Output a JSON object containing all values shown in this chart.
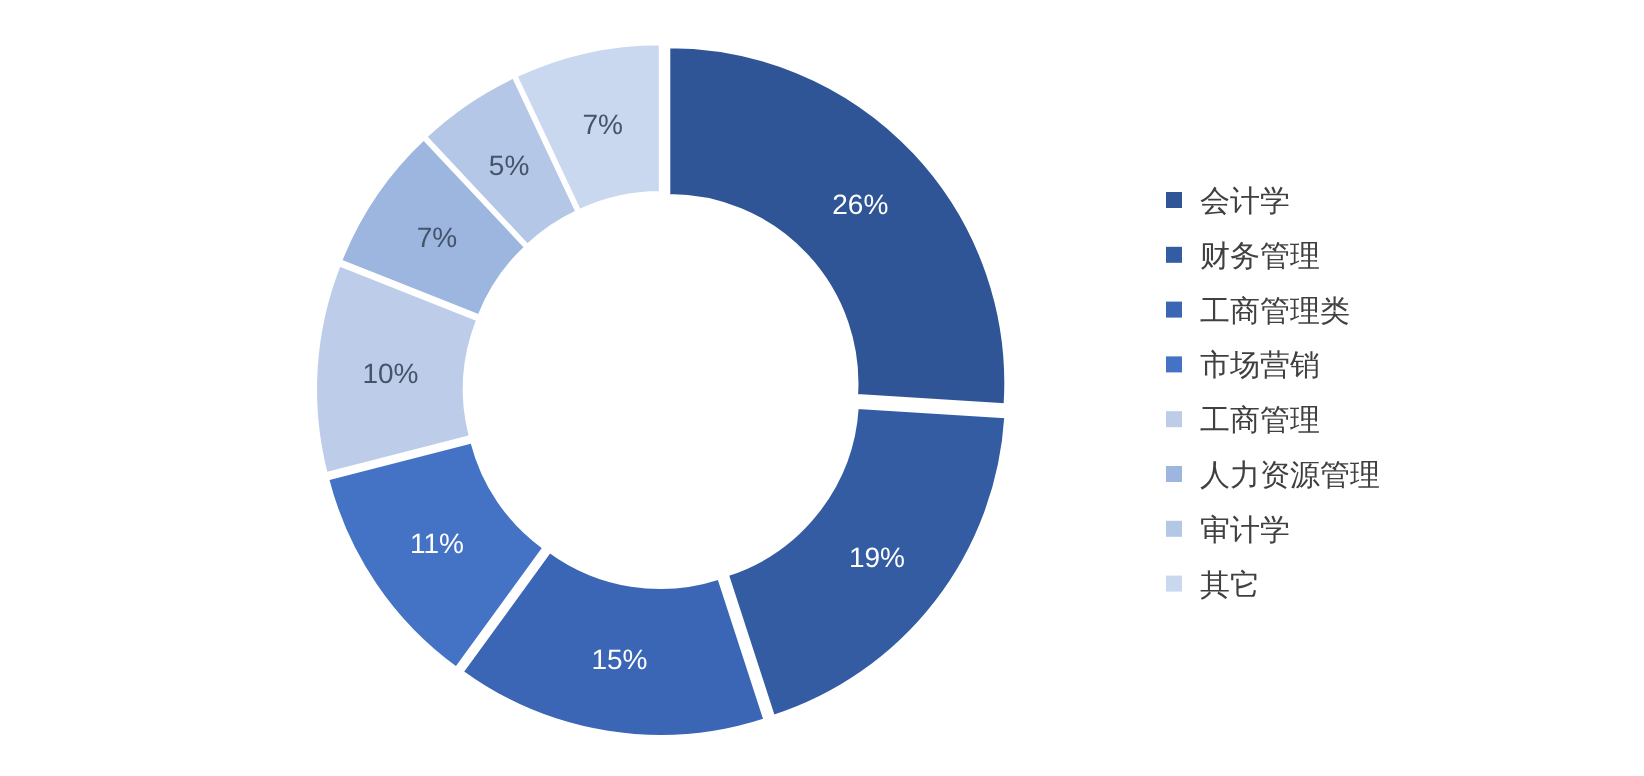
{
  "chart_data": {
    "type": "donut",
    "categories": [
      "会计学",
      "财务管理",
      "工商管理类",
      "市场营销",
      "工商管理",
      "人力资源管理",
      "审计学",
      "其它"
    ],
    "values": [
      26,
      19,
      15,
      11,
      10,
      7,
      5,
      7
    ],
    "colors": [
      "#2f5597",
      "#335ca3",
      "#3a66b5",
      "#4472c4",
      "#bdcde9",
      "#9db6df",
      "#b4c7e7",
      "#cad8ef"
    ],
    "value_labels": [
      "26%",
      "19%",
      "15%",
      "11%",
      "10%",
      "7%",
      "5%",
      "7%"
    ],
    "legend": "right"
  }
}
